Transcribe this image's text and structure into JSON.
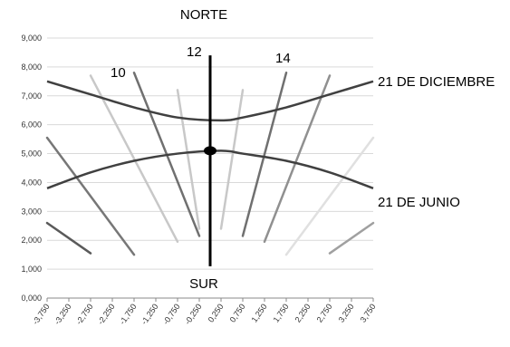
{
  "chart_data": {
    "type": "line",
    "x": [
      -3.75,
      -3.25,
      -2.75,
      -2.25,
      -1.75,
      -1.25,
      -0.75,
      -0.25,
      0.25,
      0.75,
      1.25,
      1.75,
      2.25,
      2.75,
      3.25,
      3.75
    ],
    "x_tick_labels": [
      "-3,750",
      "-3,250",
      "-2,750",
      "-2,250",
      "-1,750",
      "-1,250",
      "-0,750",
      "-0,250",
      "0,250",
      "0,750",
      "1,250",
      "1,750",
      "2,250",
      "2,750",
      "3,250",
      "3,750"
    ],
    "y_ticks": [
      0,
      1,
      2,
      3,
      4,
      5,
      6,
      7,
      8,
      9
    ],
    "y_tick_labels": [
      "0,000",
      "1,000",
      "2,000",
      "3,000",
      "4,000",
      "5,000",
      "6,000",
      "7,000",
      "8,000",
      "9,000"
    ],
    "xlim": [
      -3.75,
      3.75
    ],
    "ylim": [
      0,
      9
    ],
    "grid": "horizontal",
    "colors": {
      "curve": "#404040",
      "gnomon": "#000000",
      "grid": "#d9d9d9",
      "axis": "#888888"
    },
    "annotations": {
      "top": "NORTE",
      "bottom": "SUR",
      "december": "21 DE DICIEMBRE",
      "june": "21 DE JUNIO",
      "hour_10": "10",
      "hour_12": "12",
      "hour_14": "14"
    },
    "curves": [
      {
        "label": "21 DE DICIEMBRE",
        "x": [
          -3.75,
          -2.75,
          -1.75,
          -0.75,
          0.25,
          0.75,
          1.75,
          2.75,
          3.75
        ],
        "y": [
          7.5,
          7.05,
          6.6,
          6.25,
          6.15,
          6.25,
          6.6,
          7.05,
          7.5
        ]
      },
      {
        "label": "21 DE JUNIO",
        "x": [
          -3.75,
          -2.75,
          -1.75,
          -0.75,
          0.25,
          0.75,
          1.75,
          2.75,
          3.75
        ],
        "y": [
          3.8,
          4.35,
          4.75,
          5.0,
          5.1,
          5.0,
          4.75,
          4.35,
          3.8
        ]
      }
    ],
    "hour_lines": [
      {
        "color": "#5a5a5a",
        "x": [
          -3.75,
          -2.75
        ],
        "y": [
          2.6,
          1.55
        ]
      },
      {
        "color": "#777777",
        "x": [
          -3.75,
          -1.75
        ],
        "y": [
          5.55,
          1.5
        ]
      },
      {
        "color": "#c8c8c8",
        "x": [
          -2.75,
          -0.75
        ],
        "y": [
          7.7,
          1.95
        ]
      },
      {
        "color": "#707070",
        "x": [
          -1.75,
          -0.25
        ],
        "y": [
          7.8,
          2.15
        ]
      },
      {
        "color": "#c8c8c8",
        "x": [
          -0.75,
          -0.25
        ],
        "y": [
          7.2,
          2.4
        ]
      },
      {
        "color": "#c8c8c8",
        "x": [
          0.75,
          0.25
        ],
        "y": [
          7.2,
          2.4
        ]
      },
      {
        "color": "#707070",
        "x": [
          1.75,
          0.75
        ],
        "y": [
          7.8,
          2.15
        ]
      },
      {
        "color": "#909090",
        "x": [
          2.75,
          1.25
        ],
        "y": [
          7.7,
          1.95
        ]
      },
      {
        "color": "#e0e0e0",
        "x": [
          3.75,
          1.75
        ],
        "y": [
          5.55,
          1.5
        ]
      },
      {
        "color": "#a0a0a0",
        "x": [
          3.75,
          2.75
        ],
        "y": [
          2.6,
          1.55
        ]
      }
    ],
    "gnomon": {
      "x": 0,
      "y": [
        1.1,
        8.4
      ],
      "dot_y": 5.1
    }
  }
}
